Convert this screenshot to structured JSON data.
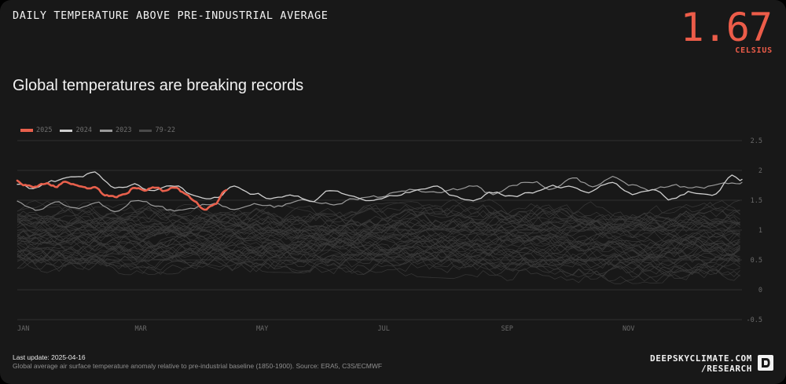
{
  "header": {
    "title": "DAILY TEMPERATURE ABOVE PRE-INDUSTRIAL AVERAGE",
    "value": "1.67",
    "unit": "CELSIUS"
  },
  "headline": "Global temperatures are breaking records",
  "footer": {
    "last_update": "Last update: 2025-04-16",
    "source": "Global average air surface temperature anomaly relative to pre-industrial baseline (1850-1900). Source: ERA5, C3S/ECMWF",
    "brand_line1": "DEEPSKYCLIMATE.COM",
    "brand_line2": "/RESEARCH"
  },
  "colors": {
    "accent": "#ec5c49",
    "y2025": "#e8604c",
    "y2024": "#cfcfcf",
    "y2023": "#9a9a9a",
    "historic": "#4a4a4a",
    "background": "#181818"
  },
  "chart_data": {
    "type": "line",
    "title": "Global temperatures are breaking records",
    "xlabel": "",
    "ylabel": "",
    "xlim": [
      1,
      365
    ],
    "ylim": [
      -0.5,
      2.5
    ],
    "yticks": [
      2.5,
      2,
      1.5,
      1,
      0.5,
      0,
      -0.5
    ],
    "ytick_labels": [
      "2.5",
      "2",
      "1.5",
      "1",
      "0.5",
      "0",
      "-0.5"
    ],
    "xticks": [
      1,
      60,
      121,
      182,
      244,
      305
    ],
    "xtick_labels": [
      "JAN",
      "MAR",
      "MAY",
      "JUL",
      "SEP",
      "NOV"
    ],
    "legend": [
      "2025",
      "2024",
      "2023",
      "79-22"
    ],
    "legend_position": "top-left",
    "series": [
      {
        "name": "2025",
        "x": [
          1,
          5,
          10,
          15,
          20,
          25,
          30,
          35,
          40,
          45,
          50,
          55,
          60,
          65,
          70,
          75,
          80,
          85,
          90,
          95,
          100,
          106
        ],
        "values": [
          1.82,
          1.75,
          1.72,
          1.78,
          1.73,
          1.8,
          1.75,
          1.7,
          1.72,
          1.6,
          1.55,
          1.62,
          1.72,
          1.68,
          1.72,
          1.66,
          1.71,
          1.62,
          1.48,
          1.33,
          1.42,
          1.67
        ]
      },
      {
        "name": "2024",
        "x": [
          1,
          10,
          20,
          30,
          40,
          50,
          60,
          70,
          80,
          90,
          100,
          110,
          120,
          130,
          140,
          150,
          160,
          170,
          180,
          190,
          200,
          210,
          220,
          230,
          240,
          250,
          260,
          270,
          280,
          290,
          300,
          310,
          320,
          330,
          340,
          350,
          360,
          365
        ],
        "values": [
          1.78,
          1.68,
          1.82,
          1.85,
          1.95,
          1.7,
          1.76,
          1.65,
          1.72,
          1.6,
          1.55,
          1.72,
          1.62,
          1.52,
          1.58,
          1.5,
          1.68,
          1.54,
          1.5,
          1.58,
          1.64,
          1.72,
          1.57,
          1.52,
          1.62,
          1.58,
          1.66,
          1.72,
          1.7,
          1.66,
          1.82,
          1.62,
          1.68,
          1.52,
          1.64,
          1.58,
          1.92,
          1.85
        ]
      },
      {
        "name": "2023",
        "x": [
          1,
          10,
          20,
          30,
          40,
          50,
          60,
          70,
          80,
          90,
          100,
          110,
          120,
          130,
          140,
          150,
          160,
          170,
          180,
          190,
          200,
          210,
          220,
          230,
          240,
          250,
          260,
          270,
          280,
          290,
          300,
          310,
          320,
          330,
          340,
          350,
          360,
          365
        ],
        "values": [
          1.48,
          1.35,
          1.44,
          1.38,
          1.46,
          1.34,
          1.5,
          1.42,
          1.32,
          1.38,
          1.44,
          1.36,
          1.42,
          1.38,
          1.46,
          1.5,
          1.44,
          1.52,
          1.55,
          1.62,
          1.66,
          1.64,
          1.68,
          1.72,
          1.6,
          1.75,
          1.82,
          1.7,
          1.85,
          1.72,
          1.92,
          1.78,
          1.68,
          1.74,
          1.7,
          1.72,
          1.78,
          1.8
        ]
      },
      {
        "name": "79-22 range",
        "note": "44 faint historical traces (1979-2022) spanning roughly these bounds",
        "x": [
          1,
          60,
          121,
          182,
          244,
          305,
          365
        ],
        "lower": [
          0.3,
          0.25,
          0.3,
          0.25,
          0.15,
          0.1,
          0.15
        ],
        "upper": [
          1.5,
          1.45,
          1.4,
          1.45,
          1.55,
          1.45,
          1.5
        ]
      }
    ]
  }
}
